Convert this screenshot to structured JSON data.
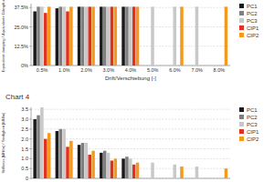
{
  "chart_data": [
    {
      "type": "bar",
      "y_label": "Equivalent damping / Äquivalente Dämpfung",
      "x_label": "Drift/Verschiebung [-]",
      "categories": [
        "0.5%",
        "1.0%",
        "2.0%",
        "3.0%",
        "4.0%",
        "5.0%",
        "6.0%",
        "7.0%",
        "8.0%"
      ],
      "series": [
        {
          "name": "PC1",
          "color": "#1a1a1a",
          "values": [
            35,
            37,
            38,
            38,
            38,
            null,
            null,
            null,
            null
          ]
        },
        {
          "name": "PC2",
          "color": "#7f7f7f",
          "values": [
            38,
            38,
            38,
            38,
            38,
            null,
            null,
            null,
            null
          ]
        },
        {
          "name": "PC3",
          "color": "#c8c8c8",
          "values": [
            38,
            38,
            38,
            38,
            38,
            38,
            38,
            38,
            null
          ]
        },
        {
          "name": "CIP1",
          "color": "#e0301e",
          "values": [
            34,
            35,
            38,
            38,
            38,
            null,
            null,
            null,
            null
          ]
        },
        {
          "name": "CIP2",
          "color": "#f39a1e",
          "values": [
            38,
            38,
            38,
            38,
            38,
            null,
            38,
            null,
            38
          ]
        }
      ],
      "ylim": [
        0,
        40
      ],
      "yticks": [
        {
          "value": 0,
          "label": "0%"
        },
        {
          "value": 12.5,
          "label": "12.5%"
        },
        {
          "value": 25,
          "label": "25.0%"
        },
        {
          "value": 37.5,
          "label": "37.5%"
        }
      ],
      "grid": true,
      "legend": "right"
    },
    {
      "type": "bar",
      "title": "Chart 4",
      "y_label": "Stiffness [MN/m] / Steifigkeit [MN/m]",
      "categories": [
        null,
        null,
        null,
        null,
        null,
        null,
        null,
        null,
        null
      ],
      "series": [
        {
          "name": "PC1",
          "color": "#1a1a1a",
          "values": [
            3.0,
            2.4,
            1.7,
            1.3,
            1.0,
            null,
            null,
            null,
            null
          ]
        },
        {
          "name": "PC2",
          "color": "#7f7f7f",
          "values": [
            3.2,
            2.5,
            1.8,
            1.4,
            1.1,
            null,
            null,
            null,
            null
          ]
        },
        {
          "name": "PC3",
          "color": "#c8c8c8",
          "values": [
            3.6,
            2.5,
            1.8,
            1.3,
            1.0,
            0.8,
            0.7,
            0.6,
            null
          ]
        },
        {
          "name": "CIP1",
          "color": "#e0301e",
          "values": [
            2.0,
            1.6,
            1.2,
            0.9,
            0.7,
            null,
            null,
            null,
            null
          ]
        },
        {
          "name": "CIP2",
          "color": "#f39a1e",
          "values": [
            2.3,
            1.9,
            1.4,
            1.0,
            0.8,
            null,
            0.6,
            null,
            0.5
          ]
        }
      ],
      "ylim": [
        0,
        3.6
      ],
      "yticks": [
        0,
        0.5,
        {
          "value": 1,
          "label": "1.0"
        },
        1.5,
        {
          "value": 2,
          "label": "2.0"
        },
        2.5,
        {
          "value": 3,
          "label": "3.0"
        },
        3.5
      ],
      "grid": true,
      "legend": "right",
      "tick_labels": "y"
    }
  ]
}
